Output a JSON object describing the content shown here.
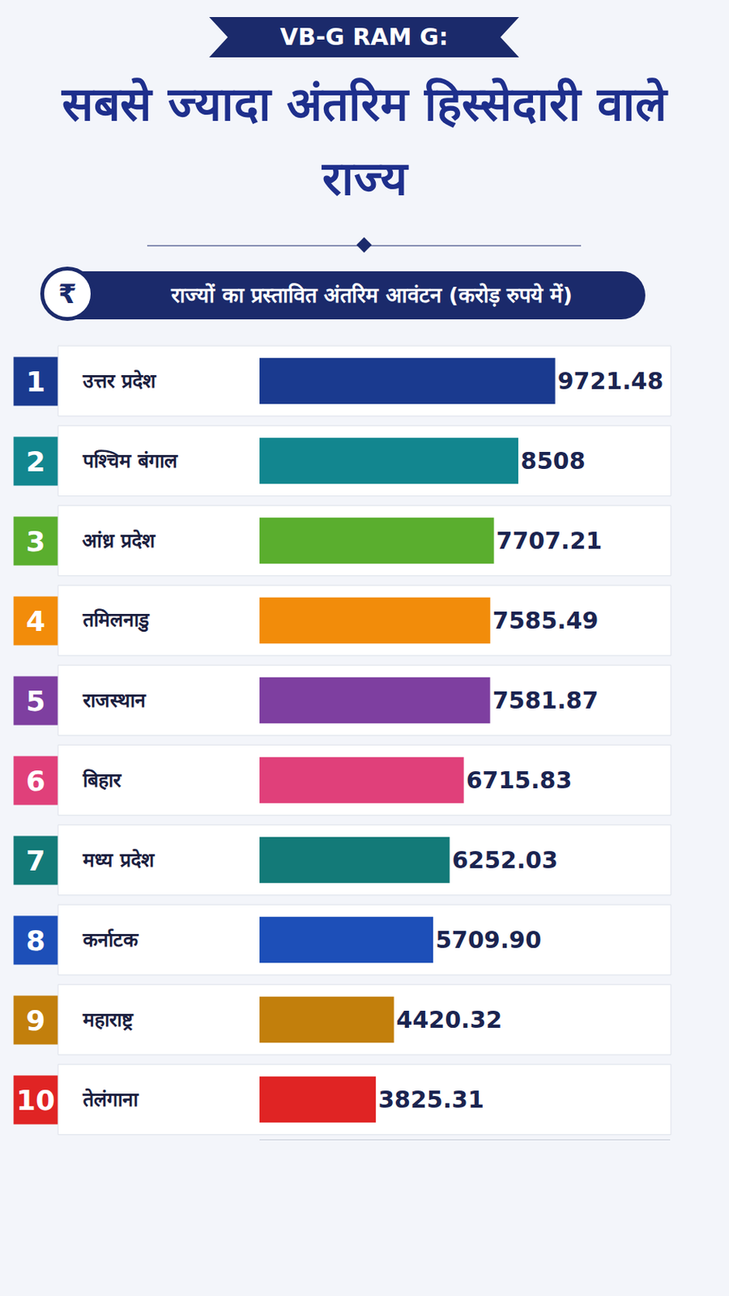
{
  "chart_data": {
    "type": "bar",
    "orientation": "horizontal",
    "title": "VB-G RAM G:",
    "subtitle": "सबसे ज्यादा अंतरिम हिस्सेदारी वाले राज्य",
    "xlabel": "राज्यों का प्रस्तावित अंतरिम आवंटन (करोड़ रुपये में)",
    "annotations": [
      "₹"
    ],
    "ranks": [
      1,
      2,
      3,
      4,
      5,
      6,
      7,
      8,
      9,
      10
    ],
    "categories": [
      "उत्तर प्रदेश",
      "पश्चिम बंगाल",
      "आंध्र प्रदेश",
      "तमिलनाडु",
      "राजस्थान",
      "बिहार",
      "मध्य प्रदेश",
      "कर्नाटक",
      "महाराष्ट्र",
      "तेलंगाना"
    ],
    "values": [
      9721.48,
      8508,
      7707.21,
      7585.49,
      7581.87,
      6715.83,
      6252.03,
      5709.9,
      4420.32,
      3825.31
    ],
    "value_labels": [
      "9721.48",
      "8508",
      "7707.21",
      "7585.49",
      "7581.87",
      "6715.83",
      "6252.03",
      "5709.90",
      "4420.32",
      "3825.31"
    ],
    "colors": [
      "#1a3a8f",
      "#12868f",
      "#5aae2e",
      "#f28c0a",
      "#7e3fa0",
      "#e0407a",
      "#137a78",
      "#1d4fb8",
      "#c27f0c",
      "#e02424"
    ],
    "xlim": [
      0,
      13500
    ],
    "xticks": [],
    "grid": false,
    "data_labels": true,
    "tick_labels": "y"
  }
}
